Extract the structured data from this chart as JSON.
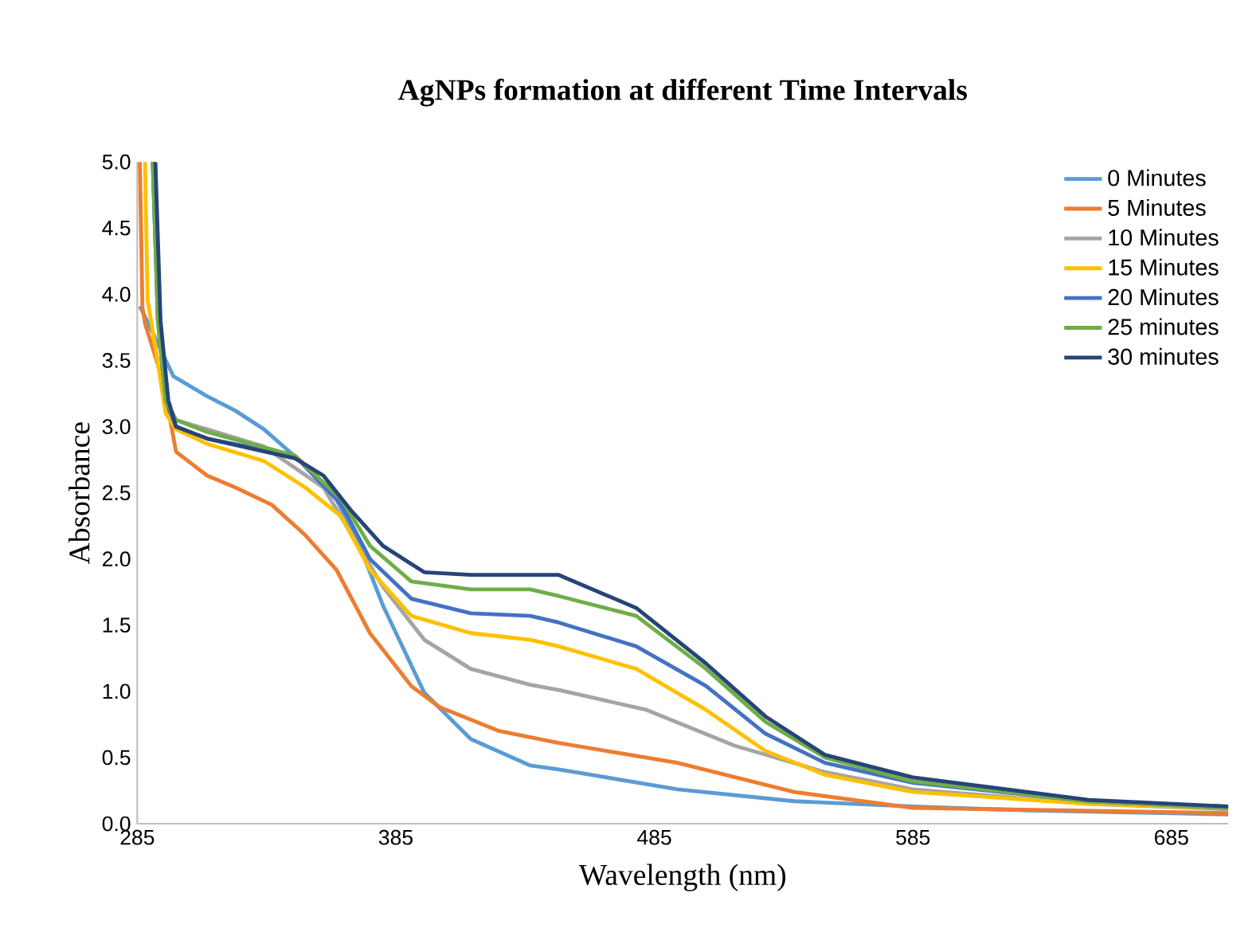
{
  "chart_data": {
    "type": "line",
    "title": "AgNPs formation at different Time Intervals",
    "xlabel": "Wavelength (nm)",
    "ylabel": "Absorbance",
    "xlim": [
      285,
      707
    ],
    "xticks": [
      285,
      385,
      485,
      585,
      685
    ],
    "ylim": [
      0,
      5
    ],
    "yticks": [
      {
        "value": 0,
        "label": "0.0"
      },
      {
        "value": 0.5,
        "label": "0.5"
      },
      {
        "value": 1,
        "label": "1.0"
      },
      {
        "value": 1.5,
        "label": "1.5"
      },
      {
        "value": 2,
        "label": "2.0"
      },
      {
        "value": 2.5,
        "label": "2.5"
      },
      {
        "value": 3,
        "label": "3.0"
      },
      {
        "value": 3.5,
        "label": "3.5"
      },
      {
        "value": 4,
        "label": "4.0"
      },
      {
        "value": 4.5,
        "label": "4.5"
      },
      {
        "value": 5,
        "label": "5.0"
      }
    ],
    "legend": "top right",
    "marker": "none",
    "line_style": "solid",
    "series": [
      {
        "name": "0 Minutes",
        "color": "#5b9bd5",
        "x": [
          286,
          290,
          299,
          312,
          323,
          334,
          348,
          362,
          371,
          380,
          396,
          414,
          437,
          448,
          494,
          539,
          585,
          630,
          685,
          707
        ],
        "values": [
          3.91,
          3.75,
          3.38,
          3.23,
          3.12,
          2.98,
          2.74,
          2.45,
          2.1,
          1.65,
          0.99,
          0.64,
          0.44,
          0.41,
          0.26,
          0.17,
          0.13,
          0.1,
          0.08,
          0.07
        ]
      },
      {
        "name": "5 Minutes",
        "color": "#ed7d31",
        "x": [
          286,
          287,
          288,
          295,
          300,
          312,
          323,
          337,
          350,
          362,
          375,
          391,
          402,
          425,
          448,
          494,
          539,
          585,
          707
        ],
        "values": [
          5.0,
          3.9,
          3.78,
          3.34,
          2.81,
          2.63,
          2.54,
          2.41,
          2.18,
          1.92,
          1.44,
          1.04,
          0.88,
          0.7,
          0.61,
          0.46,
          0.24,
          0.12,
          0.08
        ]
      },
      {
        "name": "10 Minutes",
        "color": "#a5a5a5",
        "x": [
          291,
          293,
          296,
          300,
          312,
          334,
          357,
          368,
          380,
          396,
          414,
          437,
          448,
          482,
          516,
          551,
          585,
          653,
          707
        ],
        "values": [
          5.0,
          3.8,
          3.2,
          3.05,
          2.98,
          2.85,
          2.54,
          2.18,
          1.79,
          1.39,
          1.17,
          1.05,
          1.01,
          0.86,
          0.59,
          0.39,
          0.26,
          0.15,
          0.11
        ]
      },
      {
        "name": "15 Minutes",
        "color": "#ffc000",
        "x": [
          288,
          289,
          292,
          296,
          300,
          312,
          334,
          350,
          364,
          375,
          391,
          414,
          437,
          448,
          478,
          505,
          528,
          551,
          585,
          653,
          707
        ],
        "values": [
          5.0,
          3.96,
          3.6,
          3.1,
          2.98,
          2.87,
          2.74,
          2.54,
          2.32,
          1.92,
          1.57,
          1.44,
          1.39,
          1.34,
          1.17,
          0.86,
          0.55,
          0.37,
          0.24,
          0.15,
          0.12
        ]
      },
      {
        "name": "20 Minutes",
        "color": "#4472c4",
        "x": [
          291,
          293,
          296,
          300,
          312,
          346,
          364,
          375,
          391,
          414,
          437,
          448,
          478,
          505,
          528,
          551,
          585,
          653,
          707
        ],
        "values": [
          5.0,
          3.8,
          3.2,
          3.0,
          2.91,
          2.78,
          2.41,
          2.0,
          1.7,
          1.59,
          1.57,
          1.52,
          1.34,
          1.04,
          0.68,
          0.46,
          0.31,
          0.17,
          0.12
        ]
      },
      {
        "name": "25 minutes",
        "color": "#70ad47",
        "x": [
          291,
          293,
          296,
          300,
          312,
          346,
          364,
          375,
          391,
          414,
          437,
          448,
          478,
          505,
          528,
          551,
          585,
          653,
          707
        ],
        "values": [
          5.0,
          3.8,
          3.2,
          3.05,
          2.96,
          2.78,
          2.45,
          2.1,
          1.83,
          1.77,
          1.77,
          1.72,
          1.57,
          1.17,
          0.77,
          0.5,
          0.32,
          0.17,
          0.12
        ]
      },
      {
        "name": "30 minutes",
        "color": "#264478",
        "x": [
          292,
          294,
          297,
          300,
          312,
          346,
          357,
          368,
          380,
          396,
          414,
          437,
          448,
          478,
          505,
          528,
          551,
          585,
          653,
          707
        ],
        "values": [
          5.0,
          3.8,
          3.2,
          3.0,
          2.91,
          2.76,
          2.63,
          2.36,
          2.1,
          1.9,
          1.88,
          1.88,
          1.88,
          1.63,
          1.21,
          0.81,
          0.52,
          0.35,
          0.18,
          0.13
        ]
      }
    ]
  }
}
